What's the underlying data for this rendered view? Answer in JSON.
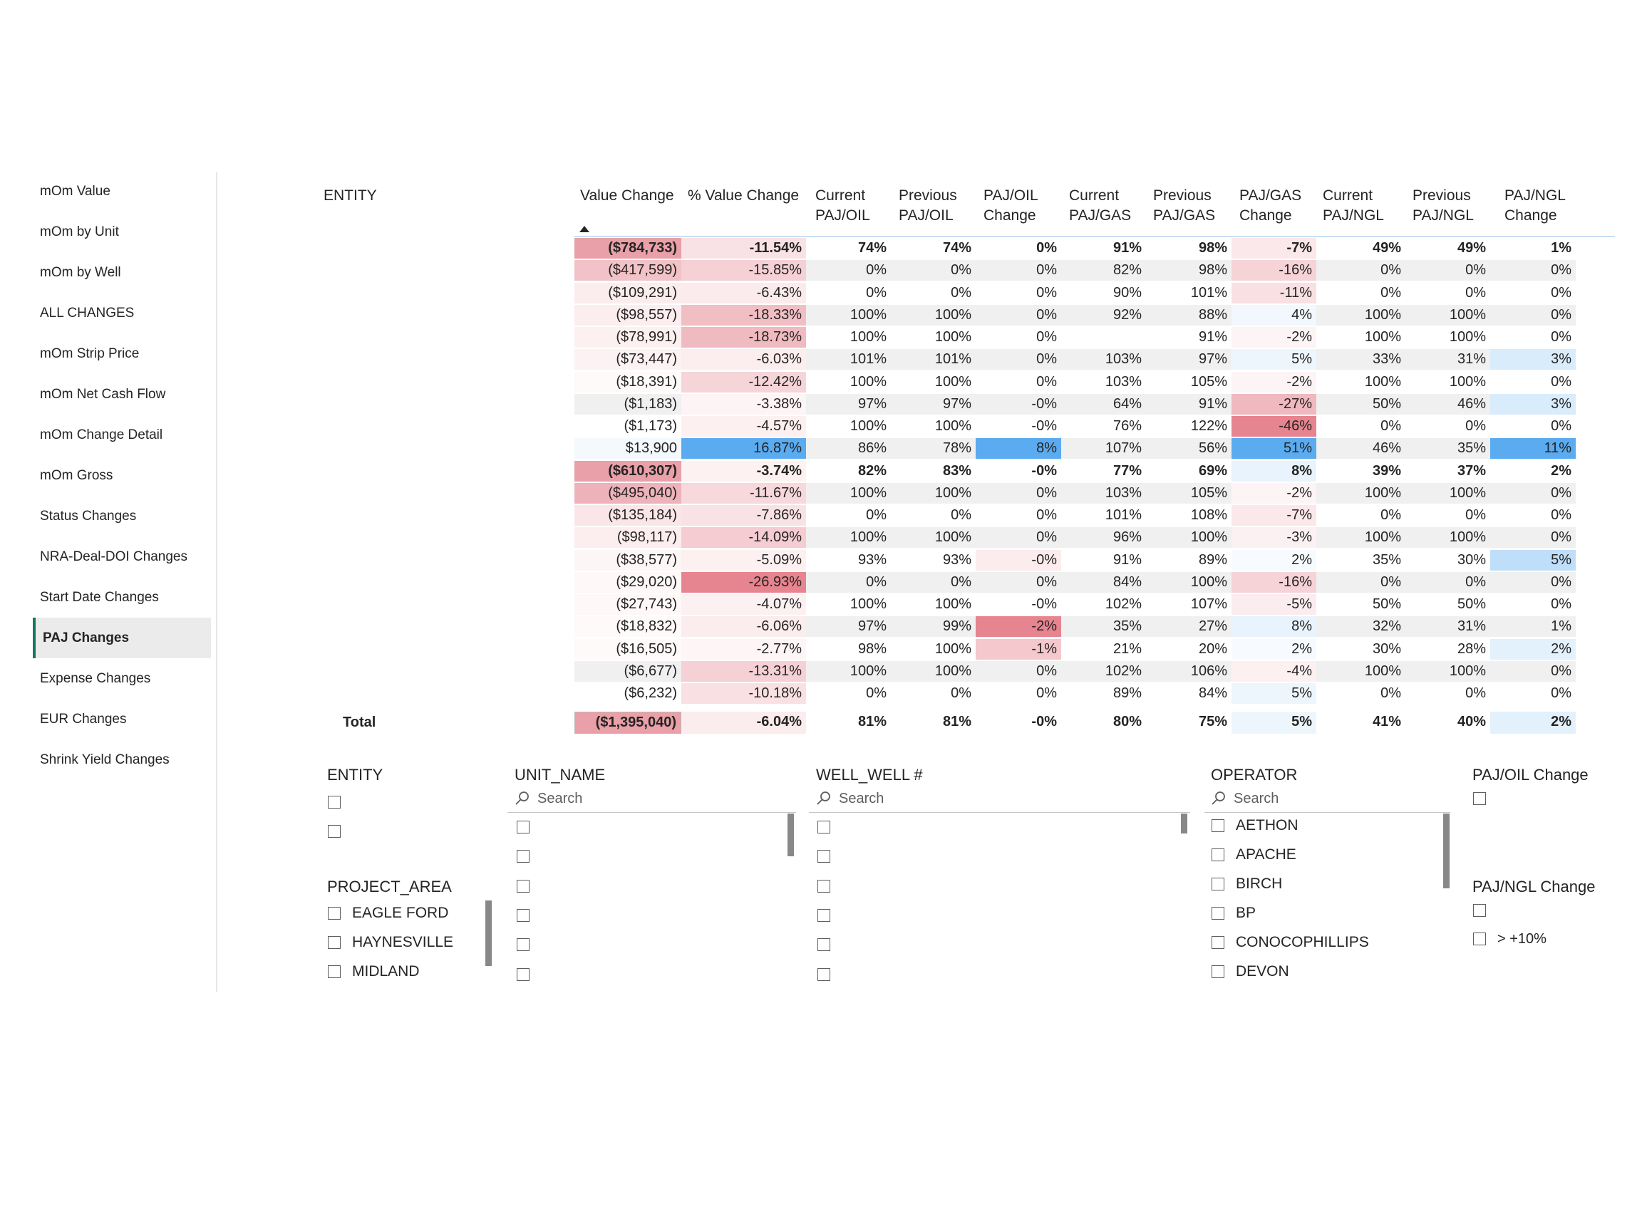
{
  "nav": {
    "items": [
      {
        "label": "mOm Value"
      },
      {
        "label": "mOm by Unit"
      },
      {
        "label": "mOm by Well"
      },
      {
        "label": "ALL CHANGES"
      },
      {
        "label": "mOm Strip Price"
      },
      {
        "label": "mOm Net Cash Flow"
      },
      {
        "label": "mOm Change Detail"
      },
      {
        "label": "mOm Gross"
      },
      {
        "label": "Status Changes"
      },
      {
        "label": "NRA-Deal-DOI Changes"
      },
      {
        "label": "Start Date Changes"
      },
      {
        "label": "PAJ Changes"
      },
      {
        "label": "Expense Changes"
      },
      {
        "label": "EUR Changes"
      },
      {
        "label": "Shrink Yield Changes"
      }
    ],
    "active_index": 11
  },
  "matrix": {
    "entity_header": "ENTITY",
    "columns": [
      {
        "line1": "Value Change",
        "line2": ""
      },
      {
        "line1": "% Value Change",
        "line2": ""
      },
      {
        "line1": "Current",
        "line2": "PAJ/OIL"
      },
      {
        "line1": "Previous",
        "line2": "PAJ/OIL"
      },
      {
        "line1": "PAJ/OIL",
        "line2": "Change"
      },
      {
        "line1": "Current",
        "line2": "PAJ/GAS"
      },
      {
        "line1": "Previous",
        "line2": "PAJ/GAS"
      },
      {
        "line1": "PAJ/GAS",
        "line2": "Change"
      },
      {
        "line1": "Current",
        "line2": "PAJ/NGL"
      },
      {
        "line1": "Previous",
        "line2": "PAJ/NGL"
      },
      {
        "line1": "PAJ/NGL",
        "line2": "Change"
      }
    ],
    "colors": {
      "neg_strong": "#e6848f",
      "pos_strong": "#5aabf0",
      "alt_row": "#f0f0f0"
    },
    "rows": [
      {
        "bold": true,
        "values": [
          "($784,733)",
          "-11.54%",
          "74%",
          "74%",
          "0%",
          "91%",
          "98%",
          "-7%",
          "49%",
          "49%",
          "1%"
        ],
        "bg": [
          "#e9a0a8",
          "#f9e2e5",
          "",
          "",
          "",
          "",
          "",
          "#fbe8ea",
          "",
          "",
          ""
        ]
      },
      {
        "bold": false,
        "values": [
          "($417,599)",
          "-15.85%",
          "0%",
          "0%",
          "0%",
          "82%",
          "98%",
          "-16%",
          "0%",
          "0%",
          "0%"
        ],
        "bg": [
          "#f1c2c7",
          "#f5d0d4",
          "",
          "",
          "",
          "",
          "",
          "#f6d3d7",
          "",
          "",
          ""
        ]
      },
      {
        "bold": false,
        "values": [
          "($109,291)",
          "-6.43%",
          "0%",
          "0%",
          "0%",
          "90%",
          "101%",
          "-11%",
          "0%",
          "0%",
          "0%"
        ],
        "bg": [
          "#fbecee",
          "#fbebed",
          "",
          "",
          "",
          "",
          "",
          "#f9e0e3",
          "",
          "",
          ""
        ]
      },
      {
        "bold": false,
        "values": [
          "($98,557)",
          "-18.33%",
          "100%",
          "100%",
          "0%",
          "92%",
          "88%",
          "4%",
          "100%",
          "100%",
          "0%"
        ],
        "bg": [
          "#fcedef",
          "#f1bec4",
          "",
          "",
          "",
          "",
          "",
          "#f2f8fe",
          "",
          "",
          ""
        ]
      },
      {
        "bold": false,
        "values": [
          "($78,991)",
          "-18.73%",
          "100%",
          "100%",
          "0%",
          "",
          "91%",
          "-2%",
          "100%",
          "100%",
          "0%"
        ],
        "bg": [
          "#fcf0f1",
          "#f0bac1",
          "",
          "",
          "",
          "",
          "",
          "#fdf4f5",
          "",
          "",
          ""
        ]
      },
      {
        "bold": false,
        "values": [
          "($73,447)",
          "-6.03%",
          "101%",
          "101%",
          "0%",
          "103%",
          "97%",
          "5%",
          "33%",
          "31%",
          "3%"
        ],
        "bg": [
          "#fdf2f3",
          "#fcedef",
          "",
          "",
          "",
          "",
          "",
          "#eef6fd",
          "",
          "",
          "#d9ecfc"
        ]
      },
      {
        "bold": false,
        "values": [
          "($18,391)",
          "-12.42%",
          "100%",
          "100%",
          "0%",
          "103%",
          "105%",
          "-2%",
          "100%",
          "100%",
          "0%"
        ],
        "bg": [
          "#fefafa",
          "#f6d5d9",
          "",
          "",
          "",
          "",
          "",
          "#fdf4f5",
          "",
          "",
          ""
        ]
      },
      {
        "bold": false,
        "values": [
          "($1,183)",
          "-3.38%",
          "97%",
          "97%",
          "-0%",
          "64%",
          "91%",
          "-27%",
          "50%",
          "46%",
          "3%"
        ],
        "bg": [
          "",
          "#fdf4f5",
          "",
          "",
          "",
          "",
          "",
          "#f0b8bf",
          "",
          "",
          "#d9ecfc"
        ]
      },
      {
        "bold": false,
        "values": [
          "($1,173)",
          "-4.57%",
          "100%",
          "100%",
          "-0%",
          "76%",
          "122%",
          "-46%",
          "0%",
          "0%",
          "0%"
        ],
        "bg": [
          "",
          "#fcf0f1",
          "",
          "",
          "",
          "",
          "",
          "#e6848f",
          "",
          "",
          ""
        ]
      },
      {
        "bold": false,
        "values": [
          "$13,900",
          "16.87%",
          "86%",
          "78%",
          "8%",
          "107%",
          "56%",
          "51%",
          "46%",
          "35%",
          "11%"
        ],
        "bg": [
          "#f4f9fe",
          "#5aabf0",
          "",
          "",
          "#5aabf0",
          "",
          "",
          "#5aabf0",
          "",
          "",
          "#5aabf0"
        ]
      },
      {
        "bold": true,
        "values": [
          "($610,307)",
          "-3.74%",
          "82%",
          "83%",
          "-0%",
          "77%",
          "69%",
          "8%",
          "39%",
          "37%",
          "2%"
        ],
        "bg": [
          "#e9a0a8",
          "#fdf1f2",
          "",
          "",
          "",
          "",
          "",
          "#e8f3fd",
          "",
          "",
          ""
        ]
      },
      {
        "bold": false,
        "values": [
          "($495,040)",
          "-11.67%",
          "100%",
          "100%",
          "0%",
          "103%",
          "105%",
          "-2%",
          "100%",
          "100%",
          "0%"
        ],
        "bg": [
          "#eeb3ba",
          "#f7d8dc",
          "",
          "",
          "",
          "",
          "",
          "#fdf4f5",
          "",
          "",
          ""
        ]
      },
      {
        "bold": false,
        "values": [
          "($135,184)",
          "-7.86%",
          "0%",
          "0%",
          "0%",
          "101%",
          "108%",
          "-7%",
          "0%",
          "0%",
          "0%"
        ],
        "bg": [
          "#fae6e8",
          "#f9e2e5",
          "",
          "",
          "",
          "",
          "",
          "#fbe8ea",
          "",
          "",
          ""
        ]
      },
      {
        "bold": false,
        "values": [
          "($98,117)",
          "-14.09%",
          "100%",
          "100%",
          "0%",
          "96%",
          "100%",
          "-3%",
          "100%",
          "100%",
          "0%"
        ],
        "bg": [
          "#fcedef",
          "#f4ccd1",
          "",
          "",
          "",
          "",
          "",
          "#fcf1f2",
          "",
          "",
          ""
        ]
      },
      {
        "bold": false,
        "values": [
          "($38,577)",
          "-5.09%",
          "93%",
          "93%",
          "-0%",
          "91%",
          "89%",
          "2%",
          "35%",
          "30%",
          "5%"
        ],
        "bg": [
          "#fdf6f7",
          "#fcf0f1",
          "",
          "",
          "#fcecee",
          "",
          "",
          "#f7fbff",
          "",
          "",
          "#bfdef9"
        ]
      },
      {
        "bold": false,
        "values": [
          "($29,020)",
          "-26.93%",
          "0%",
          "0%",
          "0%",
          "84%",
          "100%",
          "-16%",
          "0%",
          "0%",
          "0%"
        ],
        "bg": [
          "#fef8f8",
          "#e6848f",
          "",
          "",
          "",
          "",
          "",
          "#f6d3d7",
          "",
          "",
          ""
        ]
      },
      {
        "bold": false,
        "values": [
          "($27,743)",
          "-4.07%",
          "100%",
          "100%",
          "-0%",
          "102%",
          "107%",
          "-5%",
          "50%",
          "50%",
          "0%"
        ],
        "bg": [
          "#fef8f8",
          "#fcf1f2",
          "",
          "",
          "",
          "",
          "",
          "#fbedef",
          "",
          "",
          ""
        ]
      },
      {
        "bold": false,
        "values": [
          "($18,832)",
          "-6.06%",
          "97%",
          "99%",
          "-2%",
          "35%",
          "27%",
          "8%",
          "32%",
          "31%",
          "1%"
        ],
        "bg": [
          "#fefafa",
          "#fbeced",
          "",
          "",
          "#e6848f",
          "",
          "",
          "#e8f3fd",
          "",
          "",
          ""
        ]
      },
      {
        "bold": false,
        "values": [
          "($16,505)",
          "-2.77%",
          "98%",
          "100%",
          "-1%",
          "21%",
          "20%",
          "2%",
          "30%",
          "28%",
          "2%"
        ],
        "bg": [
          "#fefafa",
          "#fdf5f6",
          "",
          "",
          "#f4c8cd",
          "",
          "",
          "#f7fbff",
          "",
          "",
          "#e3f1fd"
        ]
      },
      {
        "bold": false,
        "values": [
          "($6,677)",
          "-13.31%",
          "100%",
          "100%",
          "0%",
          "102%",
          "106%",
          "-4%",
          "100%",
          "100%",
          "0%"
        ],
        "bg": [
          "",
          "#f5d0d4",
          "",
          "",
          "",
          "",
          "",
          "#fcf0f1",
          "",
          "",
          ""
        ]
      },
      {
        "bold": false,
        "values": [
          "($6,232)",
          "-10.18%",
          "0%",
          "0%",
          "0%",
          "89%",
          "84%",
          "5%",
          "0%",
          "0%",
          "0%"
        ],
        "bg": [
          "",
          "#f9e0e3",
          "",
          "",
          "",
          "",
          "",
          "#eef6fd",
          "",
          "",
          ""
        ]
      }
    ],
    "partial_row_bg": [
      "#ffffff",
      "#fbecee",
      "",
      "",
      "#d9ecfc",
      "",
      "",
      "#eef6fd",
      "",
      "",
      ""
    ],
    "total": {
      "label": "Total",
      "values": [
        "($1,395,040)",
        "-6.04%",
        "81%",
        "81%",
        "-0%",
        "80%",
        "75%",
        "5%",
        "41%",
        "40%",
        "2%"
      ],
      "bg": [
        "#e9a0a8",
        "#fbeced",
        "",
        "",
        "",
        "",
        "",
        "#eef6fd",
        "",
        "",
        "#e3f1fd"
      ]
    }
  },
  "slicers": {
    "entity": {
      "title": "ENTITY"
    },
    "project_area": {
      "title": "PROJECT_AREA",
      "options": [
        "EAGLE FORD",
        "HAYNESVILLE",
        "MIDLAND"
      ]
    },
    "unit_name": {
      "title": "UNIT_NAME",
      "placeholder": "Search"
    },
    "well": {
      "title": "WELL_WELL #",
      "placeholder": "Search"
    },
    "operator": {
      "title": "OPERATOR",
      "placeholder": "Search",
      "options": [
        "AETHON",
        "APACHE",
        "BIRCH",
        "BP",
        "CONOCOPHILLIPS",
        "DEVON"
      ]
    },
    "paj_oil": {
      "title": "PAJ/OIL Change"
    },
    "paj_ngl": {
      "title": "PAJ/NGL Change",
      "options": [
        "> +10%"
      ]
    }
  }
}
